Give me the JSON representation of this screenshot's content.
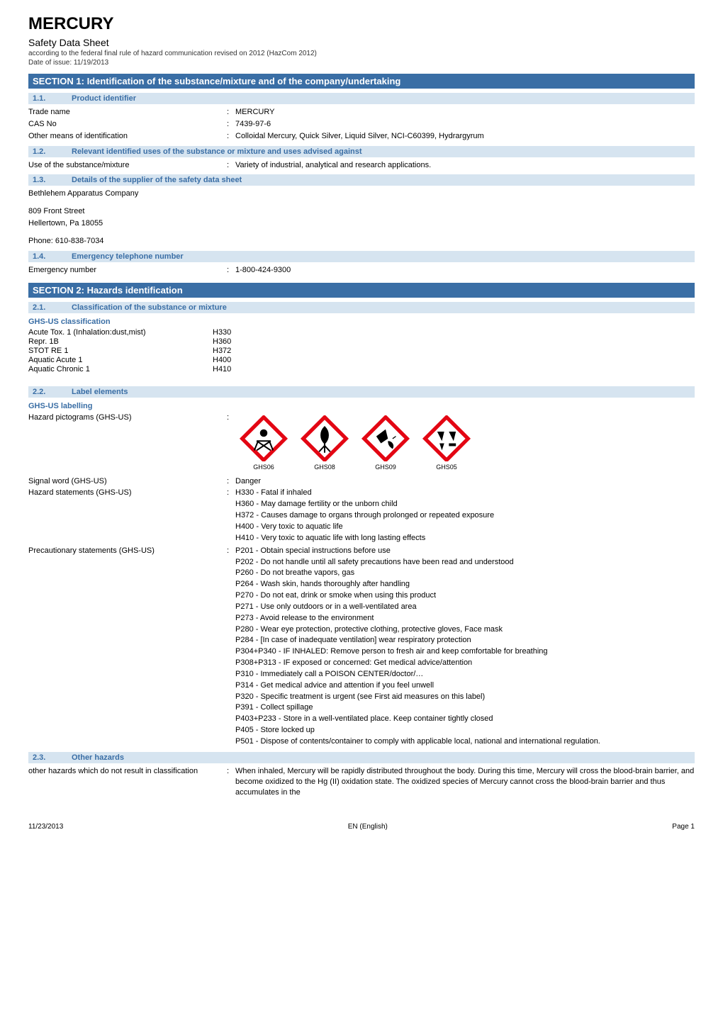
{
  "header": {
    "title": "MERCURY",
    "subtitle": "Safety Data Sheet",
    "reg_line": "according to the federal final rule of hazard communication revised on 2012 (HazCom 2012)",
    "date_line": "Date of issue: 11/19/2013"
  },
  "section1": {
    "bar": "SECTION 1: Identification of the substance/mixture and of the company/undertaking",
    "sub11": {
      "num": "1.1.",
      "title": "Product identifier"
    },
    "trade_name_label": "Trade name",
    "trade_name": "MERCURY",
    "cas_no_label": "CAS No",
    "cas_no": "7439-97-6",
    "other_id_label": "Other means of identification",
    "other_id": "Colloidal Mercury, Quick Silver, Liquid Silver, NCI-C60399, Hydrargyrum",
    "sub12": {
      "num": "1.2.",
      "title": "Relevant identified uses of the substance or mixture and uses advised against"
    },
    "use_label": "Use of the substance/mixture",
    "use": "Variety of industrial, analytical and research applications.",
    "sub13": {
      "num": "1.3.",
      "title": "Details of the supplier of the safety data sheet"
    },
    "supplier_name": "Bethlehem Apparatus Company",
    "supplier_addr1": "809 Front Street",
    "supplier_addr2": "Hellertown, Pa 18055",
    "supplier_phone": "Phone: 610-838-7034",
    "sub14": {
      "num": "1.4.",
      "title": "Emergency telephone number"
    },
    "emergency_label": "Emergency number",
    "emergency": "1-800-424-9300"
  },
  "section2": {
    "bar": "SECTION 2: Hazards identification",
    "sub21": {
      "num": "2.1.",
      "title": "Classification of the substance or mixture"
    },
    "ghs_class_hdr": "GHS-US classification",
    "classifications": [
      {
        "name": "Acute Tox. 1 (Inhalation:dust,mist)",
        "code": "H330"
      },
      {
        "name": "Repr. 1B",
        "code": "H360"
      },
      {
        "name": "STOT RE 1",
        "code": "H372"
      },
      {
        "name": "Aquatic Acute 1",
        "code": "H400"
      },
      {
        "name": "Aquatic Chronic 1",
        "code": "H410"
      }
    ],
    "sub22": {
      "num": "2.2.",
      "title": "Label elements"
    },
    "ghs_label_hdr": "GHS-US labelling",
    "picto_label": "Hazard pictograms (GHS-US)",
    "pictograms": [
      {
        "code": "GHS06",
        "name": "skull-crossbones-icon"
      },
      {
        "code": "GHS08",
        "name": "health-hazard-icon"
      },
      {
        "code": "GHS09",
        "name": "environment-icon"
      },
      {
        "code": "GHS05",
        "name": "corrosion-icon"
      }
    ],
    "picto_colors": {
      "border": "#e30613",
      "bg": "#ffffff",
      "symbol": "#000000"
    },
    "signal_label": "Signal word (GHS-US)",
    "signal": "Danger",
    "hazard_stmt_label": "Hazard statements (GHS-US)",
    "hazard_stmts": [
      "H330 - Fatal if inhaled",
      "H360 - May damage fertility or the unborn child",
      "H372 - Causes damage to organs through prolonged or repeated exposure",
      "H400 - Very toxic to aquatic life",
      "H410 - Very toxic to aquatic life with long lasting effects"
    ],
    "precaution_label": "Precautionary statements (GHS-US)",
    "precaution_stmts": [
      "P201 - Obtain special instructions before use",
      "P202 - Do not handle until all safety precautions have been read and understood",
      "P260 - Do not breathe vapors, gas",
      "P264 - Wash skin, hands thoroughly after handling",
      "P270 - Do not eat, drink or smoke when using this product",
      "P271 - Use only outdoors or in a well-ventilated area",
      "P273 - Avoid release to the environment",
      "P280 - Wear eye protection, protective clothing, protective gloves, Face mask",
      "P284 - [In case of inadequate ventilation] wear respiratory protection",
      "P304+P340 - IF INHALED: Remove person to fresh air and keep comfortable for breathing",
      "P308+P313 - IF exposed or concerned: Get medical advice/attention",
      "P310 - Immediately call a POISON CENTER/doctor/…",
      "P314 - Get medical advice and attention if you feel unwell",
      "P320 - Specific treatment is urgent (see First aid measures on this label)",
      "P391 - Collect spillage",
      "P403+P233 - Store in a well-ventilated place. Keep container tightly closed",
      "P405 - Store locked up",
      "P501 - Dispose of contents/container to comply with applicable local, national and international regulation."
    ],
    "sub23": {
      "num": "2.3.",
      "title": "Other hazards"
    },
    "other_haz_label": "other hazards which do not result in classification",
    "other_haz": "When inhaled, Mercury will be rapidly distributed throughout the body. During this time, Mercury will cross the blood-brain barrier, and become oxidized to the Hg (II) oxidation state. The oxidized species of Mercury cannot cross the blood-brain barrier and thus accumulates in the"
  },
  "footer": {
    "left": "11/23/2013",
    "center": "EN (English)",
    "right": "Page 1"
  },
  "colors": {
    "section_bar_bg": "#3a6ea5",
    "section_bar_fg": "#ffffff",
    "subsection_bg": "#d6e4f0",
    "subsection_fg": "#3a6ea5",
    "subhdr_fg": "#3a6ea5",
    "body_fg": "#000000",
    "body_bg": "#ffffff"
  },
  "typography": {
    "title_pt": 24,
    "subtitle_pt": 14,
    "body_pt": 11,
    "section_bar_pt": 13,
    "footer_pt": 10
  }
}
